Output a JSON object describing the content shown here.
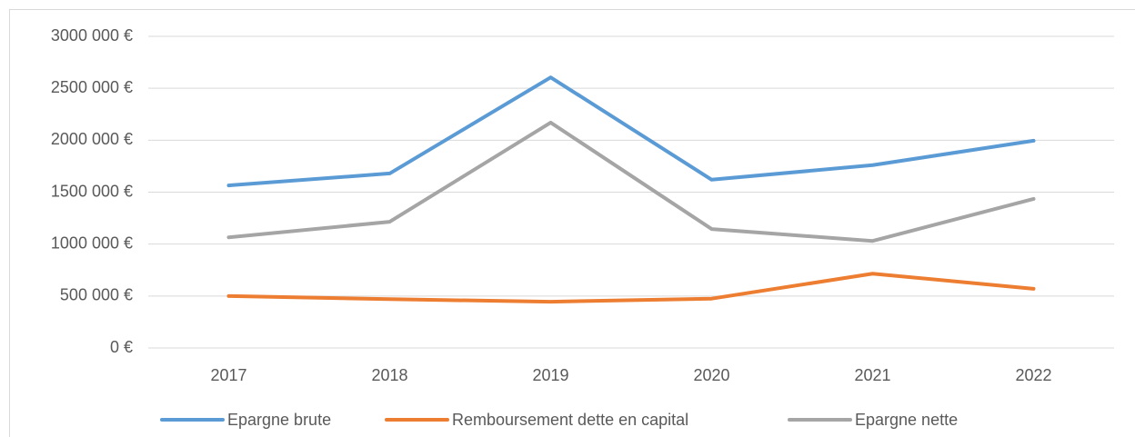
{
  "chart_data": {
    "type": "line",
    "categories": [
      "2017",
      "2018",
      "2019",
      "2020",
      "2021",
      "2022"
    ],
    "series": [
      {
        "name": "Epargne brute",
        "color": "#5b9bd5",
        "values": [
          1565000,
          1680000,
          2605000,
          1620000,
          1760000,
          1995000
        ]
      },
      {
        "name": "Remboursement dette en capital",
        "color": "#ed7d31",
        "values": [
          500000,
          470000,
          445000,
          475000,
          715000,
          570000
        ]
      },
      {
        "name": "Epargne nette",
        "color": "#a5a5a5",
        "values": [
          1065000,
          1215000,
          2170000,
          1145000,
          1030000,
          1435000
        ]
      }
    ],
    "ylim": [
      0,
      3000000
    ],
    "yticks": [
      {
        "value": 0,
        "label": "0 €"
      },
      {
        "value": 500000,
        "label": "500 000 €"
      },
      {
        "value": 1000000,
        "label": "1000 000 €"
      },
      {
        "value": 1500000,
        "label": "1500 000 €"
      },
      {
        "value": 2000000,
        "label": "2000 000 €"
      },
      {
        "value": 2500000,
        "label": "2500 000 €"
      },
      {
        "value": 3000000,
        "label": "3000 000 €"
      }
    ],
    "grid": true,
    "legend": "bottom"
  }
}
